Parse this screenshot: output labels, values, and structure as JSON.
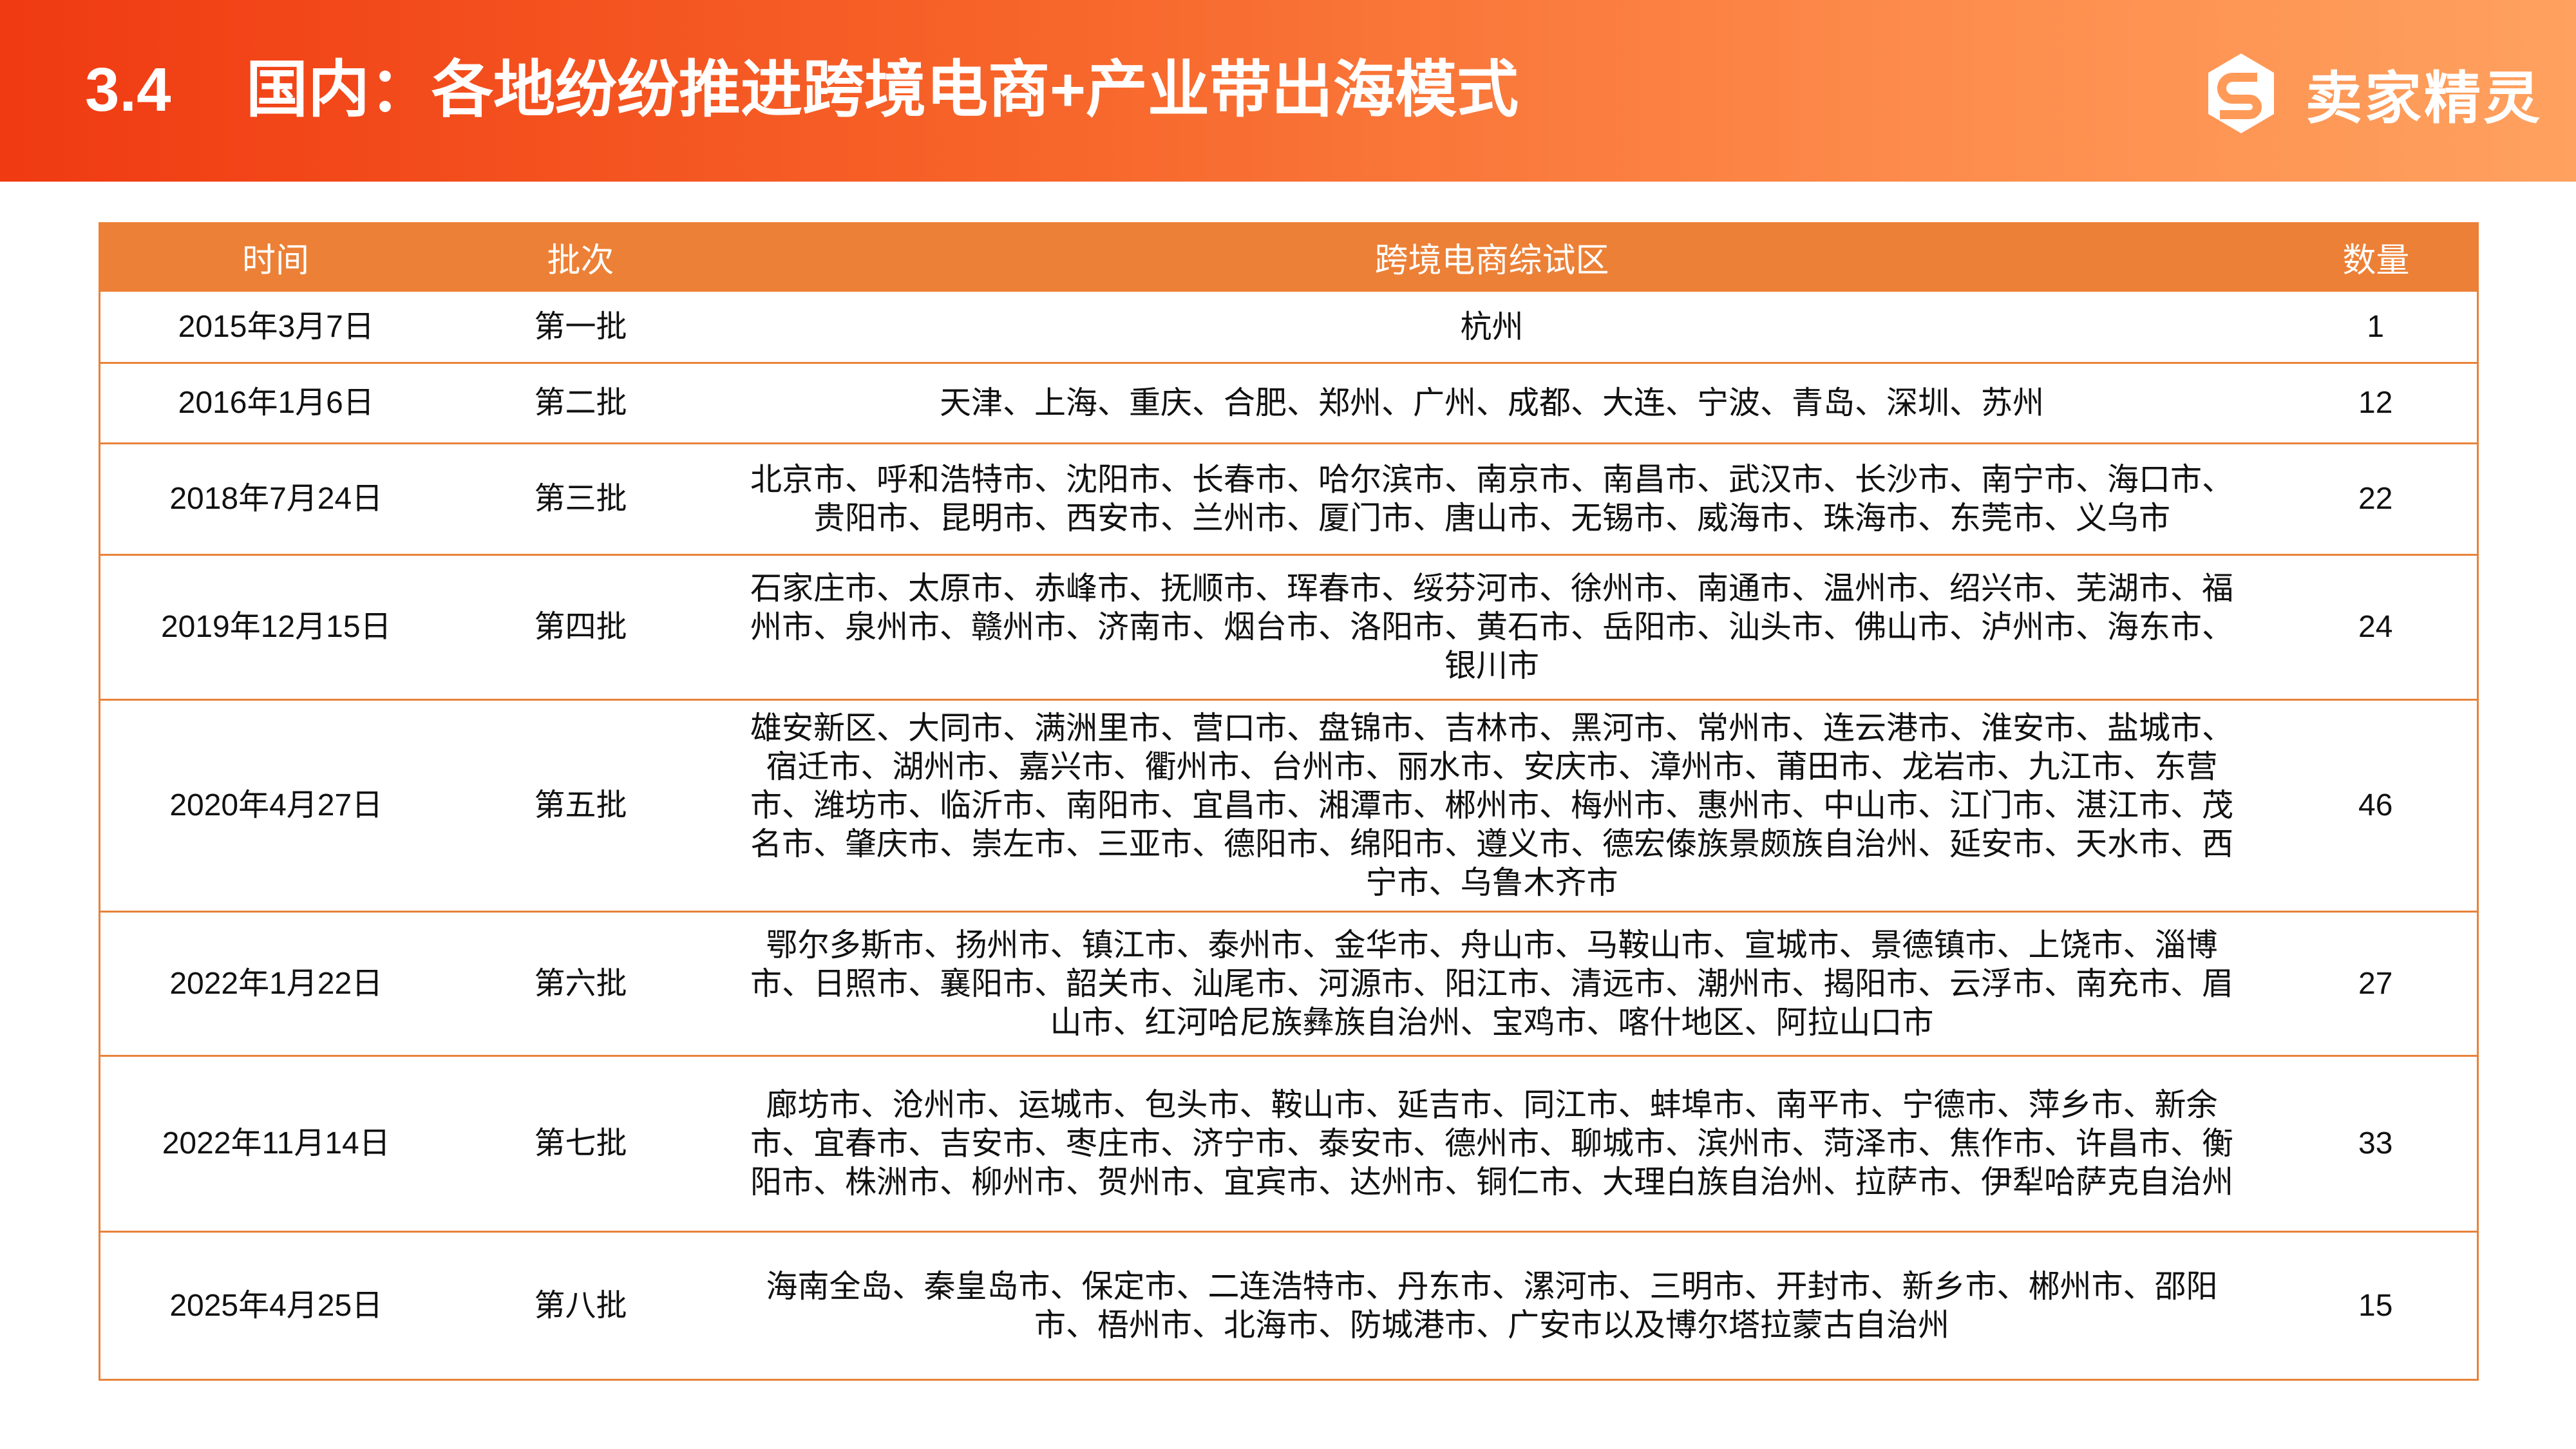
{
  "header": {
    "section_number": "3.4",
    "title": "国内：各地纷纷推进跨境电商+产业带出海模式",
    "logo_text": "卖家精灵",
    "logo_icon": "hexagon-s-logo-icon"
  },
  "colors": {
    "header_start": "#f03a12",
    "header_end": "#ffa15f",
    "table_header": "#ec8036",
    "border": "#e8823a"
  },
  "table": {
    "columns": [
      "时间",
      "批次",
      "跨境电商综试区",
      "数量"
    ],
    "rows": [
      {
        "date": "2015年3月7日",
        "batch": "第一批",
        "zones": "杭州",
        "count": "1"
      },
      {
        "date": "2016年1月6日",
        "batch": "第二批",
        "zones": "天津、上海、重庆、合肥、郑州、广州、成都、大连、宁波、青岛、深圳、苏州",
        "count": "12"
      },
      {
        "date": "2018年7月24日",
        "batch": "第三批",
        "zones": "北京市、呼和浩特市、沈阳市、长春市、哈尔滨市、南京市、南昌市、武汉市、长沙市、南宁市、海口市、贵阳市、昆明市、西安市、兰州市、厦门市、唐山市、无锡市、威海市、珠海市、东莞市、义乌市",
        "count": "22"
      },
      {
        "date": "2019年12月15日",
        "batch": "第四批",
        "zones": "石家庄市、太原市、赤峰市、抚顺市、珲春市、绥芬河市、徐州市、南通市、温州市、绍兴市、芜湖市、福州市、泉州市、赣州市、济南市、烟台市、洛阳市、黄石市、岳阳市、汕头市、佛山市、泸州市、海东市、银川市",
        "count": "24"
      },
      {
        "date": "2020年4月27日",
        "batch": "第五批",
        "zones": "雄安新区、大同市、满洲里市、营口市、盘锦市、吉林市、黑河市、常州市、连云港市、淮安市、盐城市、宿迁市、湖州市、嘉兴市、衢州市、台州市、丽水市、安庆市、漳州市、莆田市、龙岩市、九江市、东营市、潍坊市、临沂市、南阳市、宜昌市、湘潭市、郴州市、梅州市、惠州市、中山市、江门市、湛江市、茂名市、肇庆市、崇左市、三亚市、德阳市、绵阳市、遵义市、德宏傣族景颇族自治州、延安市、天水市、西宁市、乌鲁木齐市",
        "count": "46"
      },
      {
        "date": "2022年1月22日",
        "batch": "第六批",
        "zones": "鄂尔多斯市、扬州市、镇江市、泰州市、金华市、舟山市、马鞍山市、宣城市、景德镇市、上饶市、淄博市、日照市、襄阳市、韶关市、汕尾市、河源市、阳江市、清远市、潮州市、揭阳市、云浮市、南充市、眉山市、红河哈尼族彝族自治州、宝鸡市、喀什地区、阿拉山口市",
        "count": "27"
      },
      {
        "date": "2022年11月14日",
        "batch": "第七批",
        "zones": "廊坊市、沧州市、运城市、包头市、鞍山市、延吉市、同江市、蚌埠市、南平市、宁德市、萍乡市、新余市、宜春市、吉安市、枣庄市、济宁市、泰安市、德州市、聊城市、滨州市、菏泽市、焦作市、许昌市、衡阳市、株洲市、柳州市、贺州市、宜宾市、达州市、铜仁市、大理白族自治州、拉萨市、伊犁哈萨克自治州",
        "count": "33"
      },
      {
        "date": "2025年4月25日",
        "batch": "第八批",
        "zones": "海南全岛、秦皇岛市、保定市、二连浩特市、丹东市、漯河市、三明市、开封市、新乡市、郴州市、邵阳市、梧州市、北海市、防城港市、广安市以及博尔塔拉蒙古自治州",
        "count": "15"
      }
    ]
  }
}
